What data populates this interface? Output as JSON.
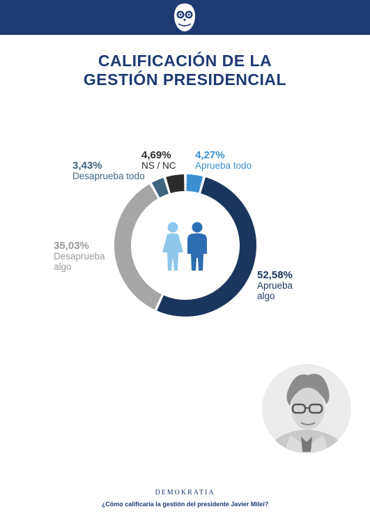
{
  "title_lines": [
    "CALIFICACIÓN DE LA",
    "GESTIÓN PRESIDENCIAL"
  ],
  "chart_data": {
    "type": "pie",
    "style": "donut",
    "categories": [
      "Aprueba todo",
      "Aprueba algo",
      "Desaprueba algo",
      "Desaprueba todo",
      "NS / NC"
    ],
    "values": [
      4.27,
      52.58,
      35.03,
      3.43,
      4.69
    ],
    "value_labels": [
      "4,27%",
      "52,58%",
      "35,03%",
      "3,43%",
      "4,69%"
    ],
    "colors": [
      "#3a8fd0",
      "#1b365d",
      "#a6a6a6",
      "#3f6580",
      "#2b2b2b"
    ],
    "label_colors": [
      "#3a8fd0",
      "#1b365d",
      "#9b9b9b",
      "#3f6580",
      "#2b2b2b"
    ],
    "label_lines": [
      [
        "Aprueba todo"
      ],
      [
        "Aprueba",
        "algo"
      ],
      [
        "Desaprueba",
        "algo"
      ],
      [
        "Desaprueba todo"
      ],
      [
        "NS / NC"
      ]
    ]
  },
  "icons": {
    "logo": "owl-logo-icon",
    "center": "woman-man-icon",
    "woman_color": "#8ec7ea",
    "man_color": "#2c6db3"
  },
  "footer": {
    "brand": "DEMOKRATIA",
    "question": "¿Cómo calificaría la gestión del presidente Javier Milei?"
  }
}
